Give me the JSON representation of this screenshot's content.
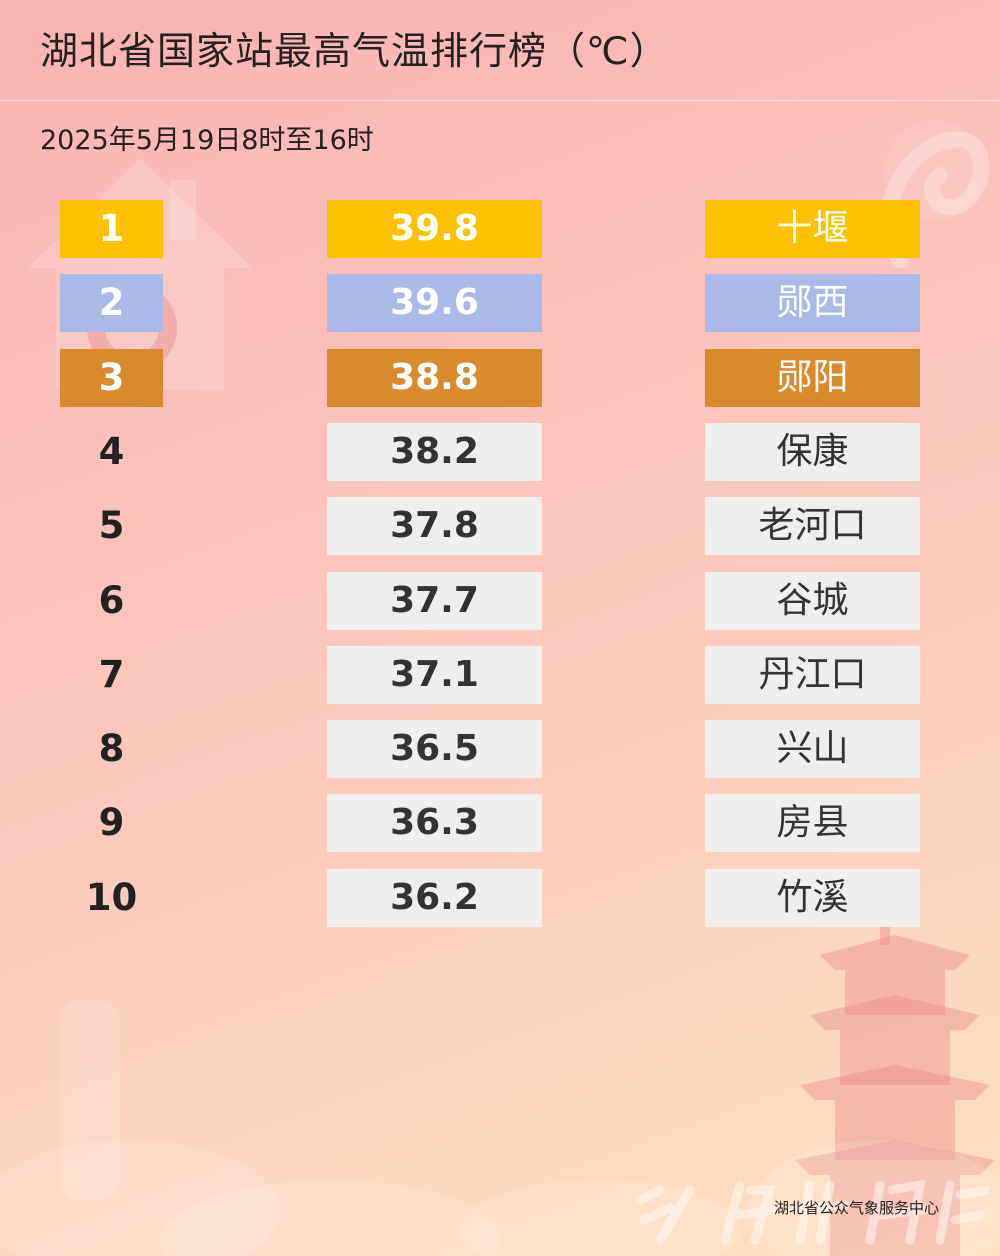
{
  "title": "湖北省国家站最高气温排行榜（℃）",
  "subtitle": "2025年5月19日8时至16时",
  "colors": {
    "gold": "#fcc200",
    "silver": "#aab9e6",
    "bronze": "#d98a2b",
    "plain": "#eeeeee"
  },
  "rows": [
    {
      "rank": "1",
      "value": "39.8",
      "city": "十堰",
      "medal": "gold"
    },
    {
      "rank": "2",
      "value": "39.6",
      "city": "郧西",
      "medal": "silver"
    },
    {
      "rank": "3",
      "value": "38.8",
      "city": "郧阳",
      "medal": "bronze"
    },
    {
      "rank": "4",
      "value": "38.2",
      "city": "保康",
      "medal": ""
    },
    {
      "rank": "5",
      "value": "37.8",
      "city": "老河口",
      "medal": ""
    },
    {
      "rank": "6",
      "value": "37.7",
      "city": "谷城",
      "medal": ""
    },
    {
      "rank": "7",
      "value": "37.1",
      "city": "丹江口",
      "medal": ""
    },
    {
      "rank": "8",
      "value": "36.5",
      "city": "兴山",
      "medal": ""
    },
    {
      "rank": "9",
      "value": "36.3",
      "city": "房县",
      "medal": ""
    },
    {
      "rank": "10",
      "value": "36.2",
      "city": "竹溪",
      "medal": ""
    }
  ],
  "credit": "湖北省公众气象服务中心"
}
